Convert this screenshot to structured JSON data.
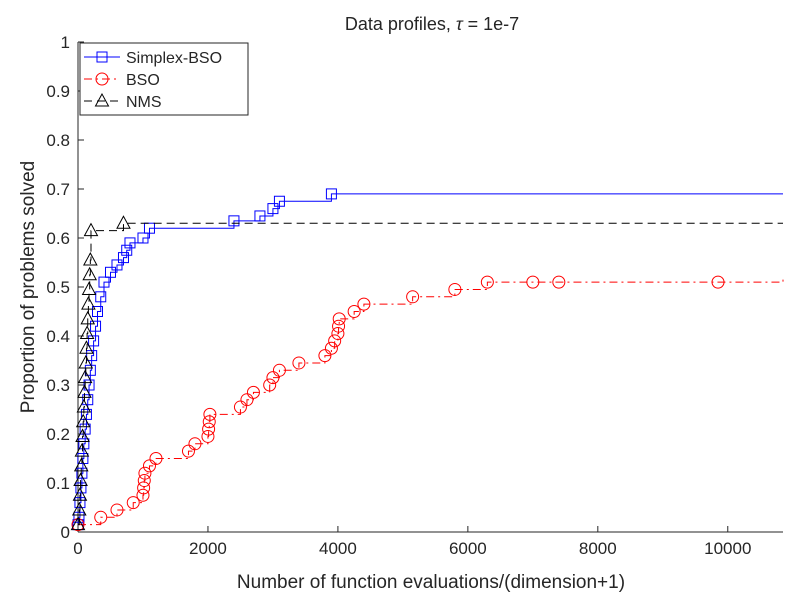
{
  "chart_data": {
    "type": "line",
    "title": "Data profiles, τ = 1e-7",
    "title_prefix": "Data profiles, ",
    "title_symbol": "τ",
    "title_suffix": " = 1e-7",
    "xlabel": "Number of function evaluations/(dimension+1)",
    "ylabel": "Proportion of problems solved",
    "xlim": [
      0,
      10850
    ],
    "ylim": [
      0,
      1
    ],
    "x_ticks": [
      0,
      2000,
      4000,
      6000,
      8000,
      10000
    ],
    "x_tick_labels": [
      "0",
      "2000",
      "4000",
      "6000",
      "8000",
      "10000"
    ],
    "y_ticks": [
      0,
      0.1,
      0.2,
      0.3,
      0.4,
      0.5,
      0.6,
      0.7,
      0.8,
      0.9,
      1
    ],
    "y_tick_labels": [
      "0",
      "0.1",
      "0.2",
      "0.3",
      "0.4",
      "0.5",
      "0.6",
      "0.7",
      "0.8",
      "0.9",
      "1"
    ],
    "grid": false,
    "legend_position": "top-left",
    "series": [
      {
        "name": "Simplex-BSO",
        "color": "#0000ff",
        "line_style": "solid",
        "marker": "square",
        "step": true,
        "x": [
          0,
          15,
          30,
          45,
          60,
          75,
          90,
          110,
          130,
          150,
          170,
          190,
          210,
          240,
          270,
          300,
          350,
          400,
          500,
          600,
          700,
          750,
          800,
          1000,
          1100,
          2400,
          2800,
          3000,
          3100,
          3900,
          10850
        ],
        "y": [
          0.015,
          0.03,
          0.06,
          0.09,
          0.12,
          0.15,
          0.18,
          0.21,
          0.24,
          0.27,
          0.3,
          0.33,
          0.36,
          0.39,
          0.42,
          0.45,
          0.48,
          0.51,
          0.53,
          0.545,
          0.56,
          0.575,
          0.59,
          0.6,
          0.62,
          0.635,
          0.645,
          0.66,
          0.675,
          0.69,
          0.69
        ]
      },
      {
        "name": "BSO",
        "color": "#ff0000",
        "line_style": "dash-dot",
        "marker": "circle",
        "step": true,
        "x": [
          0,
          350,
          600,
          850,
          1000,
          1010,
          1020,
          1030,
          1100,
          1200,
          1700,
          1800,
          2000,
          2010,
          2020,
          2030,
          2500,
          2600,
          2700,
          2950,
          3000,
          3100,
          3400,
          3800,
          3900,
          3950,
          4000,
          4010,
          4020,
          4250,
          4400,
          5150,
          5800,
          6300,
          7000,
          7400,
          9850,
          10850
        ],
        "y": [
          0.015,
          0.03,
          0.045,
          0.06,
          0.075,
          0.09,
          0.105,
          0.12,
          0.135,
          0.15,
          0.165,
          0.18,
          0.195,
          0.21,
          0.225,
          0.24,
          0.255,
          0.27,
          0.285,
          0.3,
          0.315,
          0.33,
          0.345,
          0.36,
          0.375,
          0.39,
          0.405,
          0.42,
          0.435,
          0.45,
          0.465,
          0.48,
          0.495,
          0.51,
          0.51,
          0.51,
          0.51,
          0.515
        ]
      },
      {
        "name": "NMS",
        "color": "#000000",
        "line_style": "dashed",
        "marker": "triangle",
        "step": true,
        "x": [
          0,
          20,
          30,
          40,
          50,
          60,
          70,
          80,
          90,
          100,
          110,
          120,
          130,
          140,
          150,
          160,
          170,
          180,
          190,
          200,
          700,
          10850
        ],
        "y": [
          0.015,
          0.045,
          0.075,
          0.105,
          0.135,
          0.165,
          0.195,
          0.225,
          0.255,
          0.285,
          0.315,
          0.345,
          0.375,
          0.405,
          0.435,
          0.465,
          0.495,
          0.525,
          0.555,
          0.615,
          0.63,
          0.63
        ]
      }
    ]
  }
}
